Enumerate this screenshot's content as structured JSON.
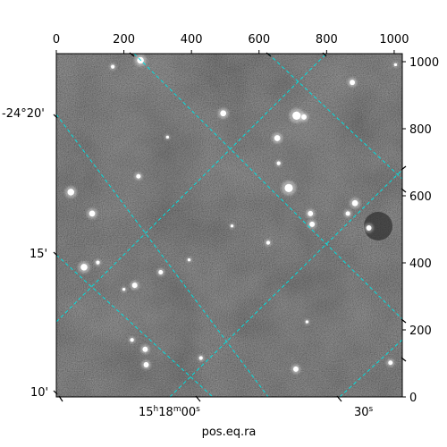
{
  "chart_data": {
    "type": "image",
    "title": "",
    "xlabel": "pos.eq.ra",
    "pixel_axes": {
      "x_range": [
        0,
        1024
      ],
      "y_range": [
        0,
        1024
      ],
      "x_ticks": [
        0,
        200,
        400,
        600,
        800,
        1000
      ],
      "y_ticks": [
        0,
        200,
        400,
        600,
        800,
        1000
      ]
    },
    "world_axes": {
      "ra_tick_labels": [
        {
          "text": "15ʰ18ᵐ00ˢ",
          "parts": [
            "15",
            "h",
            "18",
            "m",
            "00",
            "s"
          ]
        },
        {
          "text": "30ˢ",
          "parts": [
            "30",
            "s"
          ]
        }
      ],
      "dec_tick_labels": [
        "-24°20'",
        "15'",
        "10'"
      ],
      "grid": true,
      "grid_color": "#00e0e0"
    },
    "image": {
      "colormap": "gray",
      "background_level": "medium gray noise",
      "stars": [
        {
          "x": 249,
          "y": 1004,
          "r": 9
        },
        {
          "x": 167,
          "y": 985,
          "r": 5
        },
        {
          "x": 1004,
          "y": 991,
          "r": 4
        },
        {
          "x": 876,
          "y": 938,
          "r": 7
        },
        {
          "x": 494,
          "y": 846,
          "r": 8
        },
        {
          "x": 711,
          "y": 839,
          "r": 11
        },
        {
          "x": 733,
          "y": 835,
          "r": 7
        },
        {
          "x": 329,
          "y": 775,
          "r": 4
        },
        {
          "x": 654,
          "y": 772,
          "r": 8
        },
        {
          "x": 243,
          "y": 658,
          "r": 6
        },
        {
          "x": 658,
          "y": 697,
          "r": 5
        },
        {
          "x": 688,
          "y": 623,
          "r": 11
        },
        {
          "x": 43,
          "y": 611,
          "r": 9
        },
        {
          "x": 884,
          "y": 578,
          "r": 8
        },
        {
          "x": 752,
          "y": 547,
          "r": 7
        },
        {
          "x": 863,
          "y": 547,
          "r": 6
        },
        {
          "x": 106,
          "y": 547,
          "r": 8
        },
        {
          "x": 925,
          "y": 504,
          "r": 7
        },
        {
          "x": 757,
          "y": 515,
          "r": 7
        },
        {
          "x": 627,
          "y": 460,
          "r": 5
        },
        {
          "x": 520,
          "y": 510,
          "r": 4
        },
        {
          "x": 82,
          "y": 387,
          "r": 9
        },
        {
          "x": 123,
          "y": 401,
          "r": 5
        },
        {
          "x": 309,
          "y": 372,
          "r": 6
        },
        {
          "x": 232,
          "y": 333,
          "r": 7
        },
        {
          "x": 393,
          "y": 409,
          "r": 4
        },
        {
          "x": 200,
          "y": 321,
          "r": 4
        },
        {
          "x": 224,
          "y": 170,
          "r": 5
        },
        {
          "x": 263,
          "y": 142,
          "r": 7
        },
        {
          "x": 266,
          "y": 96,
          "r": 7
        },
        {
          "x": 428,
          "y": 116,
          "r": 5
        },
        {
          "x": 709,
          "y": 83,
          "r": 7
        },
        {
          "x": 989,
          "y": 102,
          "r": 6
        },
        {
          "x": 742,
          "y": 224,
          "r": 4
        }
      ]
    }
  }
}
